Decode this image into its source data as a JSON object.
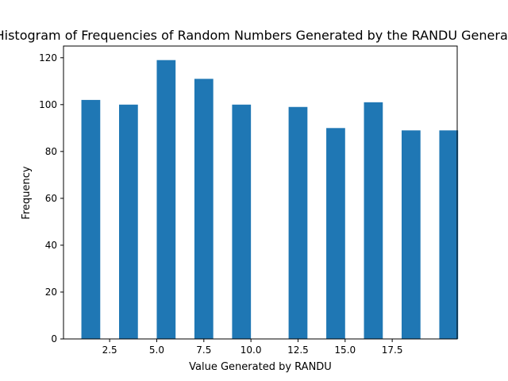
{
  "chart_data": {
    "type": "bar",
    "title": "Histogram of Frequencies of Random Numbers Generated by the RANDU Generator",
    "xlabel": "Value Generated by RANDU",
    "ylabel": "Frequency",
    "bars": [
      {
        "x": 1.5,
        "value": 102
      },
      {
        "x": 3.5,
        "value": 100
      },
      {
        "x": 5.5,
        "value": 119
      },
      {
        "x": 7.5,
        "value": 111
      },
      {
        "x": 9.5,
        "value": 100
      },
      {
        "x": 12.5,
        "value": 99
      },
      {
        "x": 14.5,
        "value": 90
      },
      {
        "x": 16.5,
        "value": 101
      },
      {
        "x": 18.5,
        "value": 89
      },
      {
        "x": 20.5,
        "value": 89
      }
    ],
    "xlim": [
      0.05,
      20.95
    ],
    "ylim": [
      0,
      125
    ],
    "xticks": [
      2.5,
      5.0,
      7.5,
      10.0,
      12.5,
      15.0,
      17.5
    ],
    "xtick_labels": [
      "2.5",
      "5.0",
      "7.5",
      "10.0",
      "12.5",
      "15.0",
      "17.5"
    ],
    "yticks": [
      0,
      20,
      40,
      60,
      80,
      100,
      120
    ],
    "ytick_labels": [
      "0",
      "20",
      "40",
      "60",
      "80",
      "100",
      "120"
    ],
    "bar_color": "#1f77b4",
    "grid": false,
    "legend": "none"
  }
}
